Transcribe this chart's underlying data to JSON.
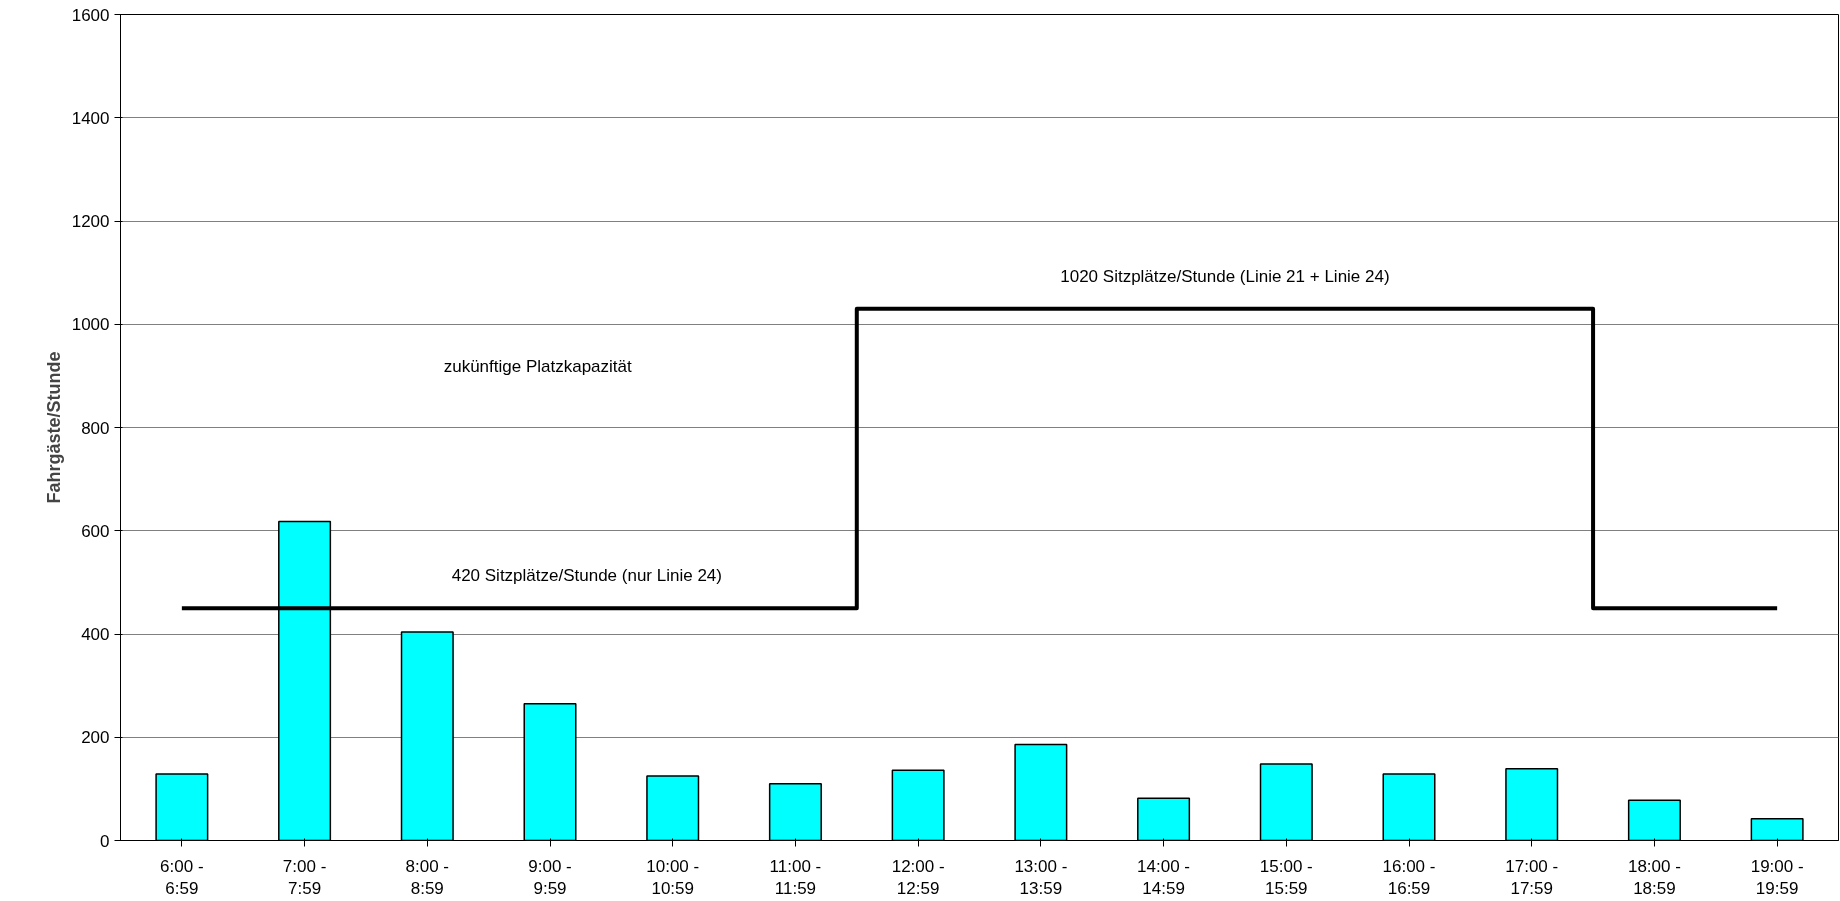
{
  "chart_data": {
    "type": "bar",
    "ylabel": "Fahrgäste/Stunde",
    "categories": [
      "6:00 -\n6:59",
      "7:00 -\n7:59",
      "8:00 -\n8:59",
      "9:00 -\n9:59",
      "10:00 -\n10:59",
      "11:00 -\n11:59",
      "12:00 -\n12:59",
      "13:00 -\n13:59",
      "14:00 -\n14:59",
      "15:00 -\n15:59",
      "16:00 -\n16:59",
      "17:00 -\n17:59",
      "18:00 -\n18:59",
      "19:00 -\n19:59"
    ],
    "series": [
      {
        "color": "#00ffff",
        "values": [
          129,
          618,
          404,
          265,
          125,
          110,
          136,
          186,
          82,
          148,
          129,
          139,
          78,
          42
        ]
      },
      {
        "type": "step",
        "color": "#000000",
        "values": [
          450,
          450,
          450,
          450,
          450,
          450,
          1030,
          1030,
          1030,
          1030,
          1030,
          1030,
          450,
          450
        ]
      }
    ],
    "ylim": [
      0,
      1600
    ],
    "yticks": [
      0,
      200,
      400,
      600,
      800,
      1000,
      1200,
      1400,
      1600
    ],
    "grid": "y",
    "annotations": [
      {
        "text": "420 Sitzplätze/Stunde (nur Linie 24)",
        "y": 450
      },
      {
        "text": "1020 Sitzplätze/Stunde (Linie 21 + Linie 24)",
        "y": 1030
      },
      "zukünftige Platzkapazität"
    ]
  }
}
